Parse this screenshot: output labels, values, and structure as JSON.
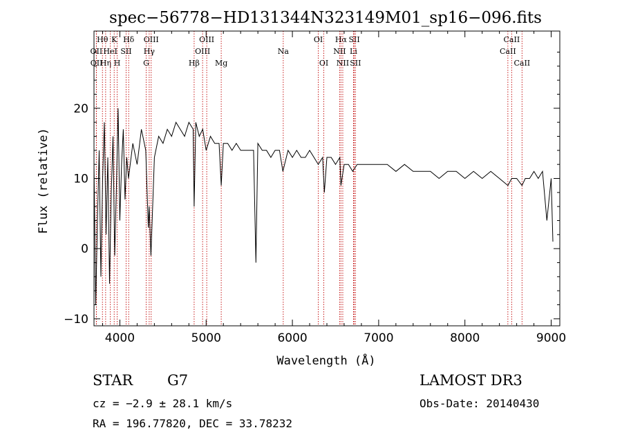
{
  "chart_data": {
    "type": "line",
    "title": "spec−56778−HD131344N323149M01_sp16−096.fits",
    "xlabel": "Wavelength (Å)",
    "ylabel": "Flux (relative)",
    "xlim": [
      3700,
      9100
    ],
    "ylim": [
      -11,
      31
    ],
    "x_ticks": [
      4000,
      5000,
      6000,
      7000,
      8000,
      9000
    ],
    "y_ticks": [
      -10,
      0,
      10,
      20
    ],
    "grid": false,
    "series": [
      {
        "name": "flux",
        "x": [
          3700,
          3720,
          3740,
          3760,
          3780,
          3800,
          3820,
          3840,
          3860,
          3880,
          3900,
          3920,
          3940,
          3960,
          3980,
          4000,
          4020,
          4040,
          4060,
          4080,
          4100,
          4150,
          4200,
          4250,
          4300,
          4330,
          4340,
          4360,
          4400,
          4450,
          4500,
          4550,
          4600,
          4650,
          4700,
          4750,
          4800,
          4850,
          4861,
          4880,
          4920,
          4960,
          5000,
          5050,
          5100,
          5150,
          5175,
          5200,
          5250,
          5300,
          5350,
          5400,
          5450,
          5500,
          5550,
          5577,
          5600,
          5650,
          5700,
          5750,
          5800,
          5850,
          5890,
          5950,
          6000,
          6050,
          6100,
          6150,
          6200,
          6250,
          6300,
          6350,
          6370,
          6400,
          6450,
          6500,
          6550,
          6563,
          6600,
          6650,
          6700,
          6750,
          6800,
          6900,
          7000,
          7100,
          7200,
          7300,
          7400,
          7500,
          7600,
          7700,
          7800,
          7900,
          8000,
          8100,
          8200,
          8300,
          8400,
          8498,
          8542,
          8600,
          8662,
          8700,
          8750,
          8800,
          8850,
          8900,
          8950,
          9000,
          9020
        ],
        "values": [
          12,
          -8,
          4,
          14,
          -4,
          10,
          18,
          2,
          13,
          -5,
          8,
          16,
          -1,
          9,
          20,
          4,
          12,
          17,
          7,
          13,
          10,
          15,
          12,
          17,
          14,
          3,
          6,
          -1,
          13,
          16,
          15,
          17,
          16,
          18,
          17,
          16,
          18,
          17,
          6,
          18,
          16,
          17,
          14,
          16,
          15,
          15,
          9,
          15,
          15,
          14,
          15,
          14,
          14,
          14,
          14,
          -2,
          15,
          14,
          14,
          13,
          14,
          14,
          11,
          14,
          13,
          14,
          13,
          13,
          14,
          13,
          12,
          13,
          8,
          13,
          13,
          12,
          13,
          9,
          12,
          12,
          11,
          12,
          12,
          12,
          12,
          12,
          11,
          12,
          11,
          11,
          11,
          10,
          11,
          11,
          10,
          11,
          10,
          11,
          10,
          9,
          10,
          10,
          9,
          10,
          10,
          11,
          10,
          11,
          4,
          10,
          1
        ]
      }
    ],
    "line_markers": [
      {
        "label": "Hθ",
        "x": 3798,
        "row": 1
      },
      {
        "label": "OII",
        "x": 3727,
        "row": 2
      },
      {
        "label": "OII",
        "x": 3729,
        "row": 3
      },
      {
        "label": "Hη",
        "x": 3835,
        "row": 3
      },
      {
        "label": "HeI",
        "x": 3889,
        "row": 2
      },
      {
        "label": "K",
        "x": 3934,
        "row": 1
      },
      {
        "label": "H",
        "x": 3969,
        "row": 3
      },
      {
        "label": "SII",
        "x": 4072,
        "row": 2
      },
      {
        "label": "Hδ",
        "x": 4102,
        "row": 1
      },
      {
        "label": "OIII",
        "x": 4363,
        "row": 1
      },
      {
        "label": "Hγ",
        "x": 4340,
        "row": 2
      },
      {
        "label": "G",
        "x": 4305,
        "row": 3
      },
      {
        "label": "Hβ",
        "x": 4861,
        "row": 3
      },
      {
        "label": "OIII",
        "x": 5007,
        "row": 1
      },
      {
        "label": "OIII",
        "x": 4959,
        "row": 2
      },
      {
        "label": "Mg",
        "x": 5175,
        "row": 3
      },
      {
        "label": "Na",
        "x": 5894,
        "row": 2
      },
      {
        "label": "OI",
        "x": 6300,
        "row": 1
      },
      {
        "label": "OI",
        "x": 6364,
        "row": 3
      },
      {
        "label": "Hα",
        "x": 6563,
        "row": 1
      },
      {
        "label": "NII",
        "x": 6548,
        "row": 2
      },
      {
        "label": "NII",
        "x": 6584,
        "row": 3
      },
      {
        "label": "SII",
        "x": 6717,
        "row": 1
      },
      {
        "label": "Li",
        "x": 6708,
        "row": 2
      },
      {
        "label": "SII",
        "x": 6731,
        "row": 3
      },
      {
        "label": "CaII",
        "x": 8542,
        "row": 1
      },
      {
        "label": "CaII",
        "x": 8498,
        "row": 2
      },
      {
        "label": "CaII",
        "x": 8662,
        "row": 3
      }
    ]
  },
  "info": {
    "object_type": "STAR",
    "subclass": "G7",
    "survey": "LAMOST DR3",
    "redshift_text": "cz = −2.9 ± 28.1 km/s",
    "obs_date": "Obs-Date: 20140430",
    "coords": "RA = 196.77820, DEC =  33.78232"
  }
}
